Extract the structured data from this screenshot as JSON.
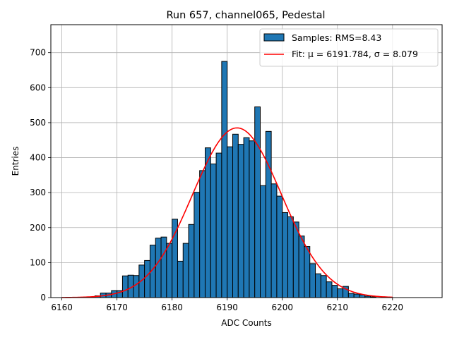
{
  "chart_data": {
    "type": "bar",
    "title": "Run 657, channel065, Pedestal",
    "xlabel": "ADC Counts",
    "ylabel": "Entries",
    "xlim": [
      6158,
      6229
    ],
    "ylim": [
      0,
      780
    ],
    "xticks": [
      6160,
      6170,
      6180,
      6190,
      6200,
      6210,
      6220
    ],
    "yticks": [
      0,
      100,
      200,
      300,
      400,
      500,
      600,
      700
    ],
    "grid": true,
    "legend_position": "top-right",
    "bin_width": 1,
    "series": [
      {
        "name": "Samples: RMS=8.43",
        "kind": "histogram",
        "color": "#1f77b4",
        "edgecolor": "#000000",
        "bin_left_edges": [
          6166,
          6167,
          6168,
          6169,
          6170,
          6171,
          6172,
          6173,
          6174,
          6175,
          6176,
          6177,
          6178,
          6179,
          6180,
          6181,
          6182,
          6183,
          6184,
          6185,
          6186,
          6187,
          6188,
          6189,
          6190,
          6191,
          6192,
          6193,
          6194,
          6195,
          6196,
          6197,
          6198,
          6199,
          6200,
          6201,
          6202,
          6203,
          6204,
          6205,
          6206,
          6207,
          6208,
          6209,
          6210,
          6211,
          6212,
          6213,
          6214,
          6215,
          6216
        ],
        "values": [
          5,
          13,
          13,
          20,
          20,
          62,
          64,
          63,
          93,
          106,
          150,
          170,
          173,
          155,
          224,
          104,
          155,
          209,
          301,
          363,
          428,
          382,
          413,
          675,
          431,
          467,
          438,
          457,
          448,
          545,
          320,
          475,
          325,
          290,
          243,
          231,
          216,
          176,
          146,
          97,
          68,
          63,
          45,
          35,
          25,
          32,
          12,
          10,
          8,
          4,
          2
        ]
      },
      {
        "name": "Fit: μ = 6191.784, σ = 8.079",
        "kind": "line",
        "color": "#ff0000",
        "mu": 6191.784,
        "sigma": 8.079,
        "amplitude": 485,
        "x_range": [
          6160,
          6220
        ]
      }
    ]
  }
}
